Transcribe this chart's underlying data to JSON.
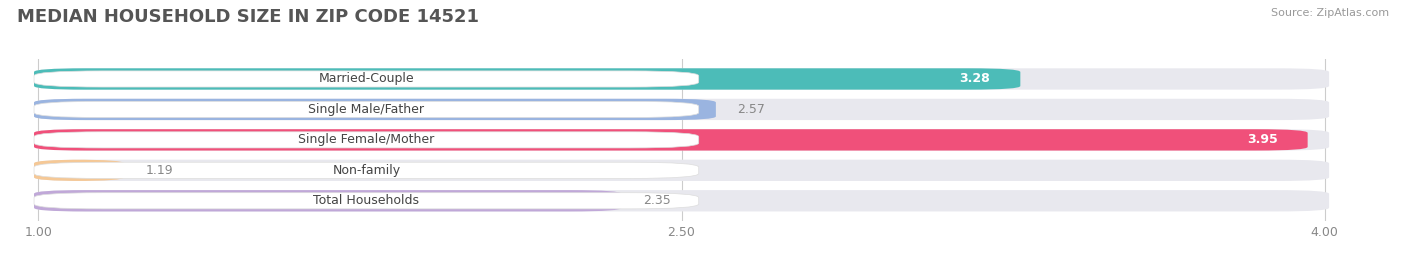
{
  "title": "MEDIAN HOUSEHOLD SIZE IN ZIP CODE 14521",
  "source": "Source: ZipAtlas.com",
  "categories": [
    "Married-Couple",
    "Single Male/Father",
    "Single Female/Mother",
    "Non-family",
    "Total Households"
  ],
  "values": [
    3.28,
    2.57,
    3.95,
    1.19,
    2.35
  ],
  "bar_colors": [
    "#4cbcb8",
    "#9ab4e0",
    "#f0507a",
    "#f5c896",
    "#c0a8d8"
  ],
  "bar_bg_color": "#e8e8ee",
  "value_inside": [
    true,
    false,
    true,
    false,
    false
  ],
  "value_colors_inside": "#ffffff",
  "value_colors_outside": "#888888",
  "xlim_min": 1.0,
  "xlim_max": 4.0,
  "xticks": [
    1.0,
    2.5,
    4.0
  ],
  "xtick_labels": [
    "1.00",
    "2.50",
    "4.00"
  ],
  "background_color": "#ffffff",
  "title_fontsize": 13,
  "label_fontsize": 9,
  "value_fontsize": 9,
  "source_fontsize": 8
}
